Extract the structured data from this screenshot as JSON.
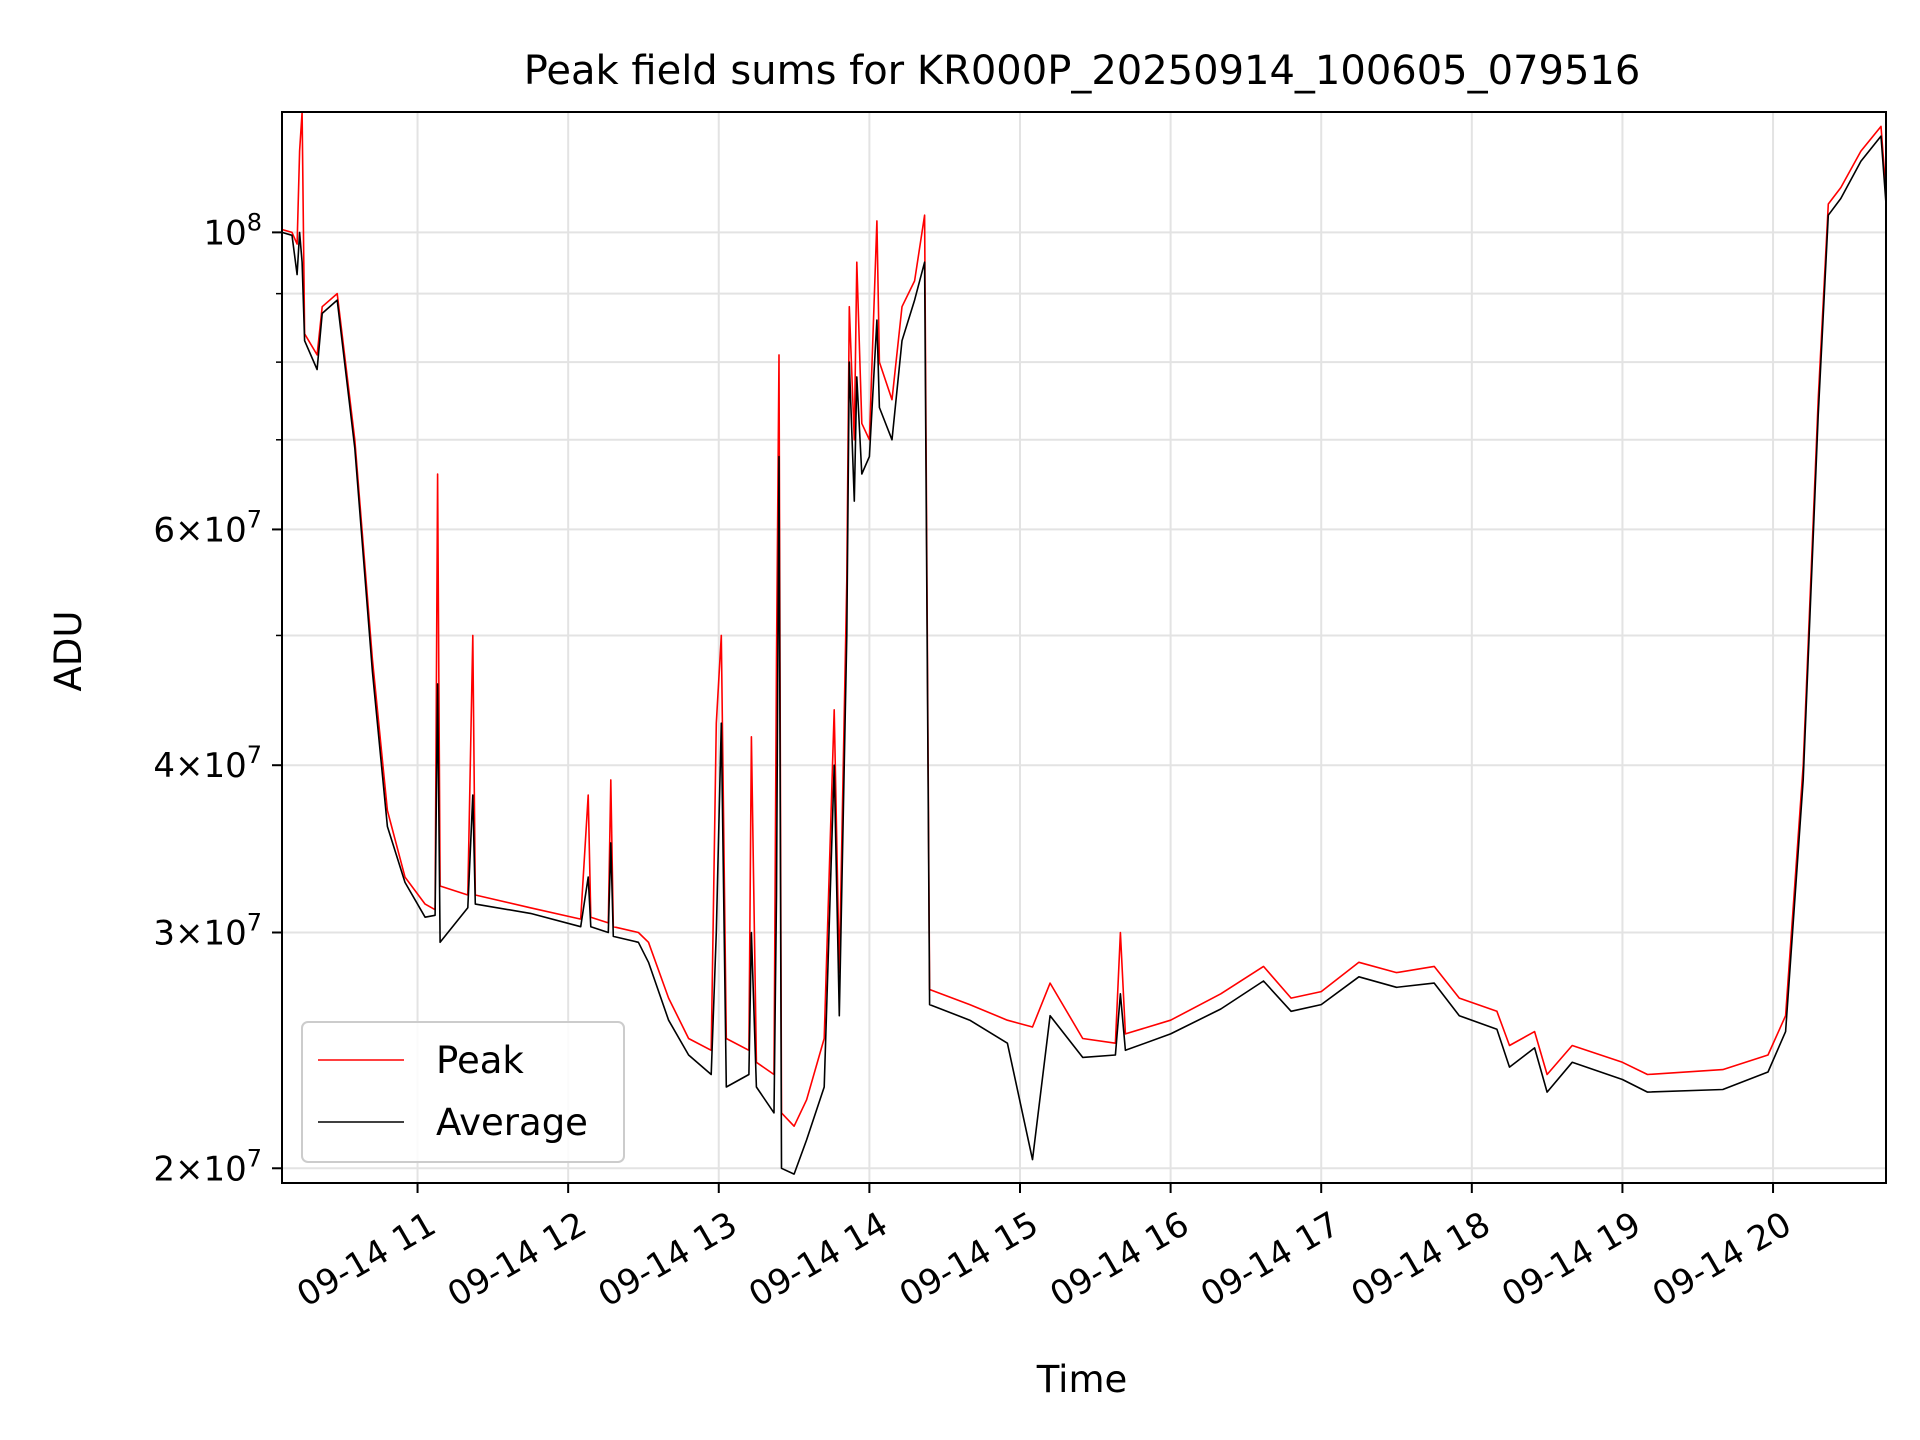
{
  "chart_data": {
    "type": "line",
    "title": "Peak field sums for KR000P_20250914_100605_079516",
    "xlabel": "Time",
    "ylabel": "ADU",
    "yscale": "log",
    "ylim": [
      19500000,
      123000000
    ],
    "xlim": [
      "2025-09-14 10:06",
      "2025-09-14 20:45"
    ],
    "grid": true,
    "legend_position": "lower-left",
    "x_ticks": [
      {
        "t": "2025-09-14 11:00",
        "label": "09-14 11"
      },
      {
        "t": "2025-09-14 12:00",
        "label": "09-14 12"
      },
      {
        "t": "2025-09-14 13:00",
        "label": "09-14 13"
      },
      {
        "t": "2025-09-14 14:00",
        "label": "09-14 14"
      },
      {
        "t": "2025-09-14 15:00",
        "label": "09-14 15"
      },
      {
        "t": "2025-09-14 16:00",
        "label": "09-14 16"
      },
      {
        "t": "2025-09-14 17:00",
        "label": "09-14 17"
      },
      {
        "t": "2025-09-14 18:00",
        "label": "09-14 18"
      },
      {
        "t": "2025-09-14 19:00",
        "label": "09-14 19"
      },
      {
        "t": "2025-09-14 20:00",
        "label": "09-14 20"
      }
    ],
    "y_ticks": [
      {
        "value": 20000000,
        "mant": "2",
        "exp": "7"
      },
      {
        "value": 30000000,
        "mant": "3",
        "exp": "7"
      },
      {
        "value": 40000000,
        "mant": "4",
        "exp": "7"
      },
      {
        "value": 60000000,
        "mant": "6",
        "exp": "7"
      },
      {
        "value": 100000000,
        "mant": "",
        "exp": "8"
      }
    ],
    "y_minor_gridlines": [
      50000000,
      70000000,
      80000000,
      90000000
    ],
    "series": [
      {
        "name": "Peak",
        "color": "#ff0000",
        "points": [
          [
            "2025-09-14 10:06",
            100500000
          ],
          [
            "2025-09-14 10:10",
            100000000
          ],
          [
            "2025-09-14 10:12",
            98000000
          ],
          [
            "2025-09-14 10:13",
            115000000
          ],
          [
            "2025-09-14 10:14",
            123000000
          ],
          [
            "2025-09-14 10:15",
            84000000
          ],
          [
            "2025-09-14 10:20",
            81000000
          ],
          [
            "2025-09-14 10:22",
            88000000
          ],
          [
            "2025-09-14 10:28",
            90000000
          ],
          [
            "2025-09-14 10:35",
            70000000
          ],
          [
            "2025-09-14 10:42",
            48000000
          ],
          [
            "2025-09-14 10:48",
            37000000
          ],
          [
            "2025-09-14 10:55",
            33000000
          ],
          [
            "2025-09-14 11:03",
            31500000
          ],
          [
            "2025-09-14 11:07",
            31200000
          ],
          [
            "2025-09-14 11:08",
            66000000
          ],
          [
            "2025-09-14 11:09",
            32500000
          ],
          [
            "2025-09-14 11:20",
            32000000
          ],
          [
            "2025-09-14 11:22",
            50000000
          ],
          [
            "2025-09-14 11:23",
            32000000
          ],
          [
            "2025-09-14 11:45",
            31300000
          ],
          [
            "2025-09-14 12:05",
            30700000
          ],
          [
            "2025-09-14 12:08",
            38000000
          ],
          [
            "2025-09-14 12:09",
            30800000
          ],
          [
            "2025-09-14 12:16",
            30500000
          ],
          [
            "2025-09-14 12:17",
            39000000
          ],
          [
            "2025-09-14 12:18",
            30300000
          ],
          [
            "2025-09-14 12:28",
            30000000
          ],
          [
            "2025-09-14 12:32",
            29500000
          ],
          [
            "2025-09-14 12:40",
            26800000
          ],
          [
            "2025-09-14 12:48",
            25000000
          ],
          [
            "2025-09-14 12:57",
            24500000
          ],
          [
            "2025-09-14 12:59",
            43000000
          ],
          [
            "2025-09-14 13:01",
            50000000
          ],
          [
            "2025-09-14 13:03",
            25000000
          ],
          [
            "2025-09-14 13:12",
            24500000
          ],
          [
            "2025-09-14 13:13",
            42000000
          ],
          [
            "2025-09-14 13:15",
            24000000
          ],
          [
            "2025-09-14 13:22",
            23500000
          ],
          [
            "2025-09-14 13:23",
            48000000
          ],
          [
            "2025-09-14 13:24",
            81000000
          ],
          [
            "2025-09-14 13:25",
            22000000
          ],
          [
            "2025-09-14 13:30",
            21500000
          ],
          [
            "2025-09-14 13:35",
            22500000
          ],
          [
            "2025-09-14 13:42",
            25000000
          ],
          [
            "2025-09-14 13:46",
            44000000
          ],
          [
            "2025-09-14 13:48",
            28000000
          ],
          [
            "2025-09-14 13:51",
            55000000
          ],
          [
            "2025-09-14 13:52",
            88000000
          ],
          [
            "2025-09-14 13:54",
            70000000
          ],
          [
            "2025-09-14 13:55",
            95000000
          ],
          [
            "2025-09-14 13:57",
            72000000
          ],
          [
            "2025-09-14 14:00",
            70000000
          ],
          [
            "2025-09-14 14:03",
            102000000
          ],
          [
            "2025-09-14 14:04",
            80000000
          ],
          [
            "2025-09-14 14:09",
            75000000
          ],
          [
            "2025-09-14 14:13",
            88000000
          ],
          [
            "2025-09-14 14:18",
            92000000
          ],
          [
            "2025-09-14 14:22",
            103000000
          ],
          [
            "2025-09-14 14:24",
            27200000
          ],
          [
            "2025-09-14 14:40",
            26500000
          ],
          [
            "2025-09-14 14:55",
            25800000
          ],
          [
            "2025-09-14 15:05",
            25500000
          ],
          [
            "2025-09-14 15:12",
            27500000
          ],
          [
            "2025-09-14 15:25",
            25000000
          ],
          [
            "2025-09-14 15:38",
            24800000
          ],
          [
            "2025-09-14 15:40",
            30000000
          ],
          [
            "2025-09-14 15:42",
            25200000
          ],
          [
            "2025-09-14 16:00",
            25800000
          ],
          [
            "2025-09-14 16:20",
            27000000
          ],
          [
            "2025-09-14 16:37",
            28300000
          ],
          [
            "2025-09-14 16:48",
            26800000
          ],
          [
            "2025-09-14 17:00",
            27100000
          ],
          [
            "2025-09-14 17:15",
            28500000
          ],
          [
            "2025-09-14 17:30",
            28000000
          ],
          [
            "2025-09-14 17:45",
            28300000
          ],
          [
            "2025-09-14 17:55",
            26800000
          ],
          [
            "2025-09-14 18:10",
            26200000
          ],
          [
            "2025-09-14 18:15",
            24700000
          ],
          [
            "2025-09-14 18:25",
            25300000
          ],
          [
            "2025-09-14 18:30",
            23500000
          ],
          [
            "2025-09-14 18:40",
            24700000
          ],
          [
            "2025-09-14 19:00",
            24000000
          ],
          [
            "2025-09-14 19:10",
            23500000
          ],
          [
            "2025-09-14 19:40",
            23700000
          ],
          [
            "2025-09-14 19:58",
            24300000
          ],
          [
            "2025-09-14 20:05",
            26000000
          ],
          [
            "2025-09-14 20:12",
            40000000
          ],
          [
            "2025-09-14 20:18",
            75000000
          ],
          [
            "2025-09-14 20:22",
            105000000
          ],
          [
            "2025-09-14 20:27",
            108000000
          ],
          [
            "2025-09-14 20:35",
            115000000
          ],
          [
            "2025-09-14 20:43",
            120000000
          ],
          [
            "2025-09-14 20:45",
            107000000
          ]
        ]
      },
      {
        "name": "Average",
        "color": "#000000",
        "points": [
          [
            "2025-09-14 10:06",
            100000000
          ],
          [
            "2025-09-14 10:10",
            99500000
          ],
          [
            "2025-09-14 10:12",
            93000000
          ],
          [
            "2025-09-14 10:13",
            100000000
          ],
          [
            "2025-09-14 10:14",
            95000000
          ],
          [
            "2025-09-14 10:15",
            83000000
          ],
          [
            "2025-09-14 10:20",
            79000000
          ],
          [
            "2025-09-14 10:22",
            87000000
          ],
          [
            "2025-09-14 10:28",
            89000000
          ],
          [
            "2025-09-14 10:35",
            69000000
          ],
          [
            "2025-09-14 10:42",
            47000000
          ],
          [
            "2025-09-14 10:48",
            36000000
          ],
          [
            "2025-09-14 10:55",
            32700000
          ],
          [
            "2025-09-14 11:03",
            30800000
          ],
          [
            "2025-09-14 11:07",
            30900000
          ],
          [
            "2025-09-14 11:08",
            46000000
          ],
          [
            "2025-09-14 11:09",
            29500000
          ],
          [
            "2025-09-14 11:20",
            31300000
          ],
          [
            "2025-09-14 11:22",
            38000000
          ],
          [
            "2025-09-14 11:23",
            31500000
          ],
          [
            "2025-09-14 11:45",
            31000000
          ],
          [
            "2025-09-14 12:05",
            30300000
          ],
          [
            "2025-09-14 12:08",
            33000000
          ],
          [
            "2025-09-14 12:09",
            30300000
          ],
          [
            "2025-09-14 12:16",
            30000000
          ],
          [
            "2025-09-14 12:17",
            35000000
          ],
          [
            "2025-09-14 12:18",
            29800000
          ],
          [
            "2025-09-14 12:28",
            29500000
          ],
          [
            "2025-09-14 12:32",
            28500000
          ],
          [
            "2025-09-14 12:40",
            25800000
          ],
          [
            "2025-09-14 12:48",
            24300000
          ],
          [
            "2025-09-14 12:57",
            23500000
          ],
          [
            "2025-09-14 12:59",
            30000000
          ],
          [
            "2025-09-14 13:01",
            43000000
          ],
          [
            "2025-09-14 13:03",
            23000000
          ],
          [
            "2025-09-14 13:12",
            23500000
          ],
          [
            "2025-09-14 13:13",
            30000000
          ],
          [
            "2025-09-14 13:15",
            23000000
          ],
          [
            "2025-09-14 13:22",
            22000000
          ],
          [
            "2025-09-14 13:23",
            32000000
          ],
          [
            "2025-09-14 13:24",
            68000000
          ],
          [
            "2025-09-14 13:25",
            20000000
          ],
          [
            "2025-09-14 13:30",
            19800000
          ],
          [
            "2025-09-14 13:35",
            21000000
          ],
          [
            "2025-09-14 13:42",
            23000000
          ],
          [
            "2025-09-14 13:46",
            40000000
          ],
          [
            "2025-09-14 13:48",
            26000000
          ],
          [
            "2025-09-14 13:51",
            50000000
          ],
          [
            "2025-09-14 13:52",
            80000000
          ],
          [
            "2025-09-14 13:54",
            63000000
          ],
          [
            "2025-09-14 13:55",
            78000000
          ],
          [
            "2025-09-14 13:57",
            66000000
          ],
          [
            "2025-09-14 14:00",
            68000000
          ],
          [
            "2025-09-14 14:03",
            86000000
          ],
          [
            "2025-09-14 14:04",
            74000000
          ],
          [
            "2025-09-14 14:09",
            70000000
          ],
          [
            "2025-09-14 14:13",
            83000000
          ],
          [
            "2025-09-14 14:18",
            89000000
          ],
          [
            "2025-09-14 14:22",
            95000000
          ],
          [
            "2025-09-14 14:24",
            26500000
          ],
          [
            "2025-09-14 14:40",
            25800000
          ],
          [
            "2025-09-14 14:55",
            24800000
          ],
          [
            "2025-09-14 15:05",
            20300000
          ],
          [
            "2025-09-14 15:12",
            26000000
          ],
          [
            "2025-09-14 15:25",
            24200000
          ],
          [
            "2025-09-14 15:38",
            24300000
          ],
          [
            "2025-09-14 15:40",
            27000000
          ],
          [
            "2025-09-14 15:42",
            24500000
          ],
          [
            "2025-09-14 16:00",
            25200000
          ],
          [
            "2025-09-14 16:20",
            26300000
          ],
          [
            "2025-09-14 16:37",
            27600000
          ],
          [
            "2025-09-14 16:48",
            26200000
          ],
          [
            "2025-09-14 17:00",
            26500000
          ],
          [
            "2025-09-14 17:15",
            27800000
          ],
          [
            "2025-09-14 17:30",
            27300000
          ],
          [
            "2025-09-14 17:45",
            27500000
          ],
          [
            "2025-09-14 17:55",
            26000000
          ],
          [
            "2025-09-14 18:10",
            25400000
          ],
          [
            "2025-09-14 18:15",
            23800000
          ],
          [
            "2025-09-14 18:25",
            24600000
          ],
          [
            "2025-09-14 18:30",
            22800000
          ],
          [
            "2025-09-14 18:40",
            24000000
          ],
          [
            "2025-09-14 19:00",
            23300000
          ],
          [
            "2025-09-14 19:10",
            22800000
          ],
          [
            "2025-09-14 19:40",
            22900000
          ],
          [
            "2025-09-14 19:58",
            23600000
          ],
          [
            "2025-09-14 20:05",
            25300000
          ],
          [
            "2025-09-14 20:12",
            39000000
          ],
          [
            "2025-09-14 20:18",
            73000000
          ],
          [
            "2025-09-14 20:22",
            103000000
          ],
          [
            "2025-09-14 20:27",
            106000000
          ],
          [
            "2025-09-14 20:35",
            113000000
          ],
          [
            "2025-09-14 20:43",
            118000000
          ],
          [
            "2025-09-14 20:45",
            105000000
          ]
        ]
      }
    ]
  }
}
